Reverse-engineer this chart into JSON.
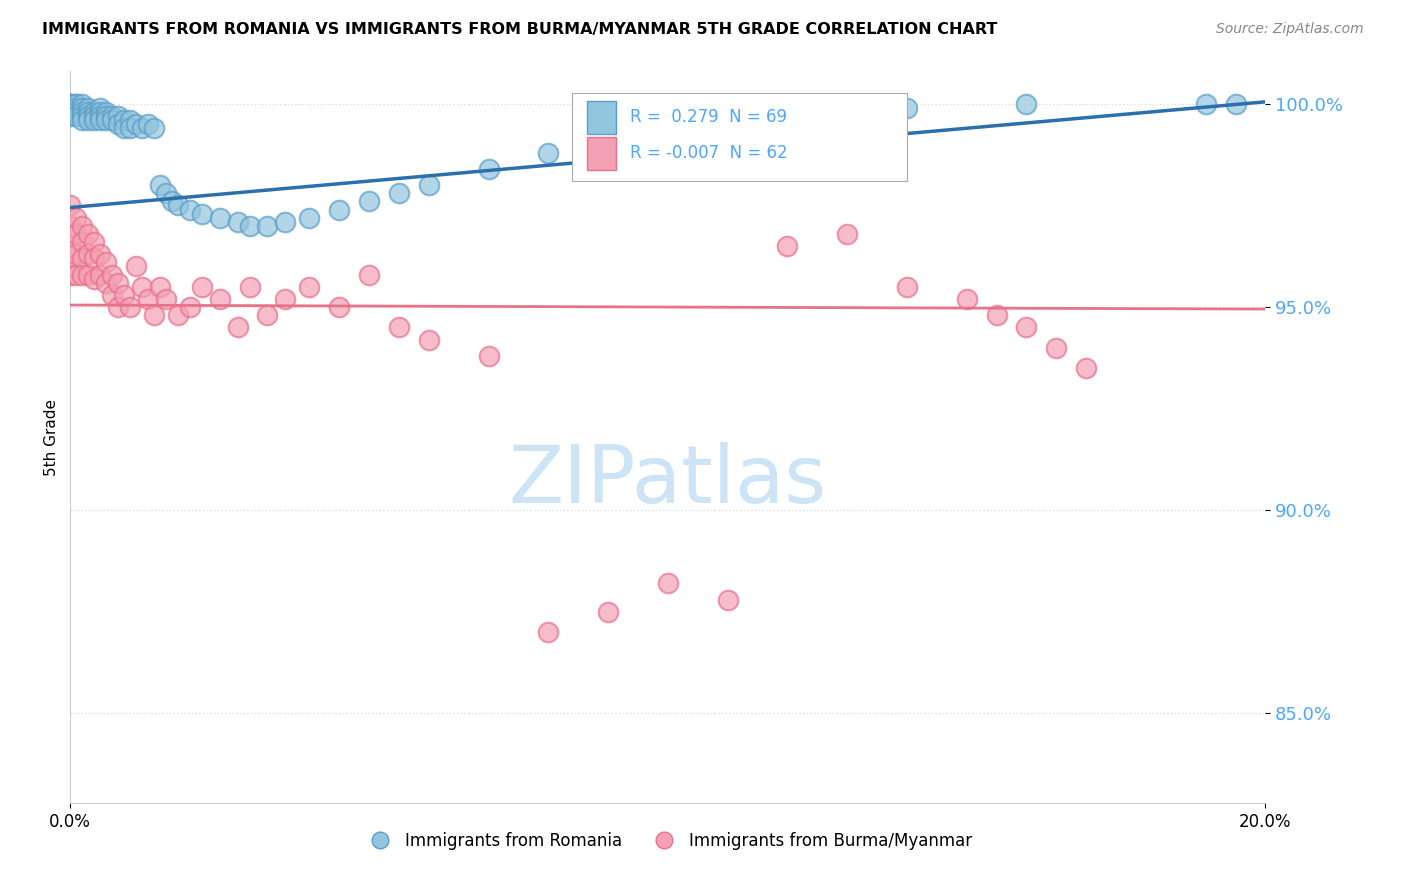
{
  "title": "IMMIGRANTS FROM ROMANIA VS IMMIGRANTS FROM BURMA/MYANMAR 5TH GRADE CORRELATION CHART",
  "source": "Source: ZipAtlas.com",
  "ylabel": "5th Grade",
  "y_ticks": [
    0.85,
    0.9,
    0.95,
    1.0
  ],
  "y_tick_labels": [
    "85.0%",
    "90.0%",
    "95.0%",
    "100.0%"
  ],
  "xlim": [
    0.0,
    0.2
  ],
  "ylim": [
    0.828,
    1.008
  ],
  "legend_r_romania": "0.279",
  "legend_n_romania": 69,
  "legend_r_burma": "-0.007",
  "legend_n_burma": 62,
  "romania_color": "#92c5de",
  "burma_color": "#f4a0b5",
  "romania_edge_color": "#5b9ec9",
  "burma_edge_color": "#e8728a",
  "trendline_romania_color": "#2c6fad",
  "trendline_burma_color": "#e8728a",
  "tick_color": "#4da6ff",
  "background_color": "#ffffff",
  "watermark_color": "#cce4f5",
  "grid_color": "#dddddd",
  "ro_trendline_x": [
    0.0,
    0.2
  ],
  "ro_trendline_y": [
    0.9745,
    1.0005
  ],
  "bu_trendline_y": [
    0.9505,
    0.9495
  ]
}
